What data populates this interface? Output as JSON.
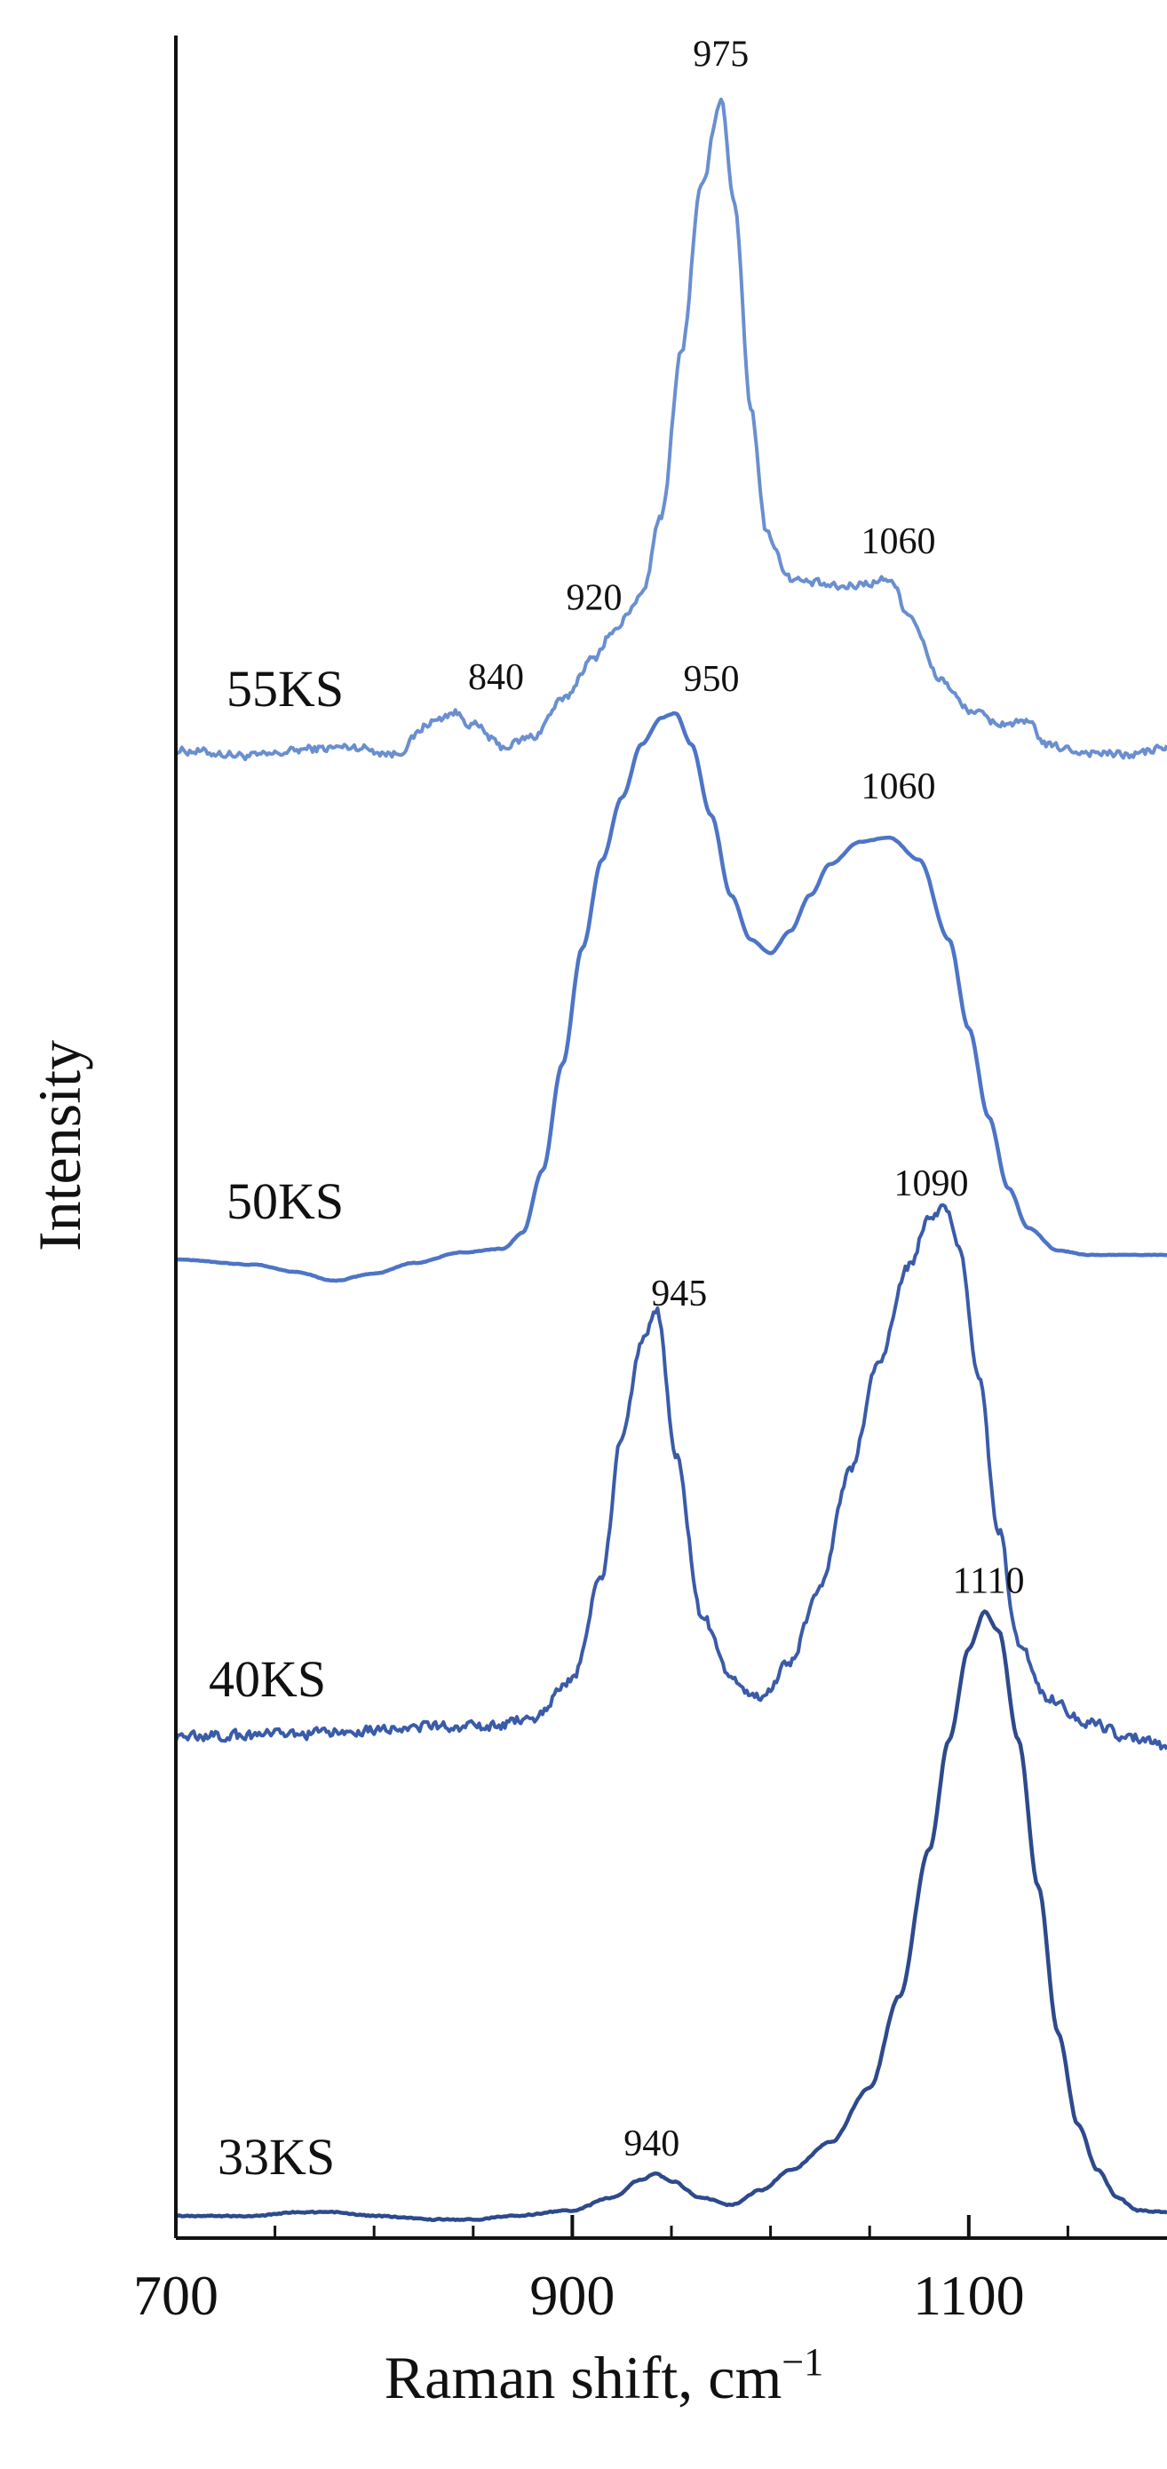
{
  "chart_data": {
    "type": "line",
    "xlabel": "Raman shift, cm",
    "xlabel_superscript": "−1",
    "ylabel": "Intensity",
    "xlim": [
      700,
      1200
    ],
    "x_ticks": [
      700,
      900,
      1100
    ],
    "x_minor_ticks": [
      750,
      800,
      850,
      950,
      1000,
      1050,
      1150
    ],
    "y_ticks": [],
    "grid": false,
    "legend": "none",
    "colors": {
      "55KS": "#6a8fd0",
      "50KS": "#4d74c6",
      "40KS": "#3a5ba8",
      "33KS": "#2e4a8c",
      "axis": "#111111"
    },
    "series": [
      {
        "name": "55KS",
        "noise": 0.6,
        "points": [
          [
            700,
            0
          ],
          [
            740,
            -0.6
          ],
          [
            770,
            0.2
          ],
          [
            790,
            0.4
          ],
          [
            810,
            -0.4
          ],
          [
            830,
            3.2
          ],
          [
            840,
            4.2
          ],
          [
            850,
            2.8
          ],
          [
            865,
            0.4
          ],
          [
            880,
            1.5
          ],
          [
            895,
            5.5
          ],
          [
            910,
            10
          ],
          [
            920,
            13
          ],
          [
            935,
            17
          ],
          [
            945,
            26
          ],
          [
            955,
            44
          ],
          [
            965,
            62
          ],
          [
            975,
            72
          ],
          [
            982,
            60
          ],
          [
            990,
            38
          ],
          [
            998,
            24
          ],
          [
            1010,
            19
          ],
          [
            1020,
            18.5
          ],
          [
            1035,
            18
          ],
          [
            1050,
            18.5
          ],
          [
            1060,
            19
          ],
          [
            1070,
            15
          ],
          [
            1085,
            8
          ],
          [
            1100,
            4.5
          ],
          [
            1115,
            3
          ],
          [
            1130,
            3
          ],
          [
            1140,
            0.5
          ],
          [
            1160,
            -0.2
          ],
          [
            1180,
            -0.5
          ],
          [
            1200,
            0.3
          ]
        ],
        "peak_labels": [
          {
            "text": "975",
            "x": 975
          },
          {
            "text": "1060",
            "x": 1060
          },
          {
            "text": "920",
            "x": 920
          },
          {
            "text": "840",
            "x": 840
          }
        ]
      },
      {
        "name": "50KS",
        "noise": 0.05,
        "points": [
          [
            700,
            0
          ],
          [
            740,
            -0.6
          ],
          [
            760,
            -1.4
          ],
          [
            780,
            -2.4
          ],
          [
            800,
            -1.6
          ],
          [
            820,
            -0.4
          ],
          [
            845,
            0.8
          ],
          [
            865,
            1.2
          ],
          [
            875,
            3
          ],
          [
            885,
            10
          ],
          [
            895,
            22
          ],
          [
            905,
            35
          ],
          [
            915,
            45
          ],
          [
            925,
            52
          ],
          [
            935,
            58
          ],
          [
            945,
            61
          ],
          [
            952,
            61.5
          ],
          [
            960,
            58
          ],
          [
            970,
            50
          ],
          [
            980,
            41
          ],
          [
            990,
            36
          ],
          [
            1000,
            34.5
          ],
          [
            1010,
            37
          ],
          [
            1020,
            41
          ],
          [
            1030,
            44.5
          ],
          [
            1045,
            47
          ],
          [
            1060,
            47.5
          ],
          [
            1075,
            45
          ],
          [
            1090,
            36
          ],
          [
            1100,
            26
          ],
          [
            1110,
            16
          ],
          [
            1120,
            8
          ],
          [
            1130,
            3.5
          ],
          [
            1145,
            1
          ],
          [
            1160,
            0.5
          ],
          [
            1200,
            0.5
          ]
        ],
        "peak_labels": [
          {
            "text": "950",
            "x": 950
          },
          {
            "text": "1060",
            "x": 1060
          }
        ]
      },
      {
        "name": "40KS",
        "noise": 0.7,
        "points": [
          [
            700,
            0
          ],
          [
            760,
            0.2
          ],
          [
            820,
            1
          ],
          [
            860,
            1
          ],
          [
            880,
            2
          ],
          [
            900,
            6
          ],
          [
            915,
            17
          ],
          [
            925,
            32
          ],
          [
            935,
            42
          ],
          [
            943,
            45
          ],
          [
            952,
            30
          ],
          [
            965,
            13
          ],
          [
            980,
            6
          ],
          [
            995,
            4
          ],
          [
            1010,
            8
          ],
          [
            1025,
            16
          ],
          [
            1040,
            28
          ],
          [
            1055,
            40
          ],
          [
            1070,
            50
          ],
          [
            1080,
            55
          ],
          [
            1088,
            56
          ],
          [
            1095,
            52
          ],
          [
            1105,
            38
          ],
          [
            1115,
            22
          ],
          [
            1125,
            10
          ],
          [
            1140,
            4
          ],
          [
            1160,
            1.5
          ],
          [
            1180,
            0
          ],
          [
            1200,
            -1
          ]
        ],
        "peak_labels": [
          {
            "text": "945",
            "x": 945
          },
          {
            "text": "1090",
            "x": 1090
          }
        ]
      },
      {
        "name": "33KS",
        "noise": 0.1,
        "points": [
          [
            700,
            0
          ],
          [
            740,
            0
          ],
          [
            760,
            0.4
          ],
          [
            780,
            0.4
          ],
          [
            800,
            0
          ],
          [
            830,
            -0.4
          ],
          [
            850,
            -0.4
          ],
          [
            870,
            0
          ],
          [
            900,
            0.6
          ],
          [
            920,
            2
          ],
          [
            935,
            4
          ],
          [
            942,
            4.6
          ],
          [
            950,
            3.8
          ],
          [
            965,
            2
          ],
          [
            980,
            1.2
          ],
          [
            995,
            2.8
          ],
          [
            1010,
            5
          ],
          [
            1030,
            8
          ],
          [
            1050,
            14
          ],
          [
            1065,
            24
          ],
          [
            1080,
            40
          ],
          [
            1090,
            52
          ],
          [
            1100,
            62
          ],
          [
            1108,
            66
          ],
          [
            1115,
            64
          ],
          [
            1125,
            52
          ],
          [
            1135,
            36
          ],
          [
            1145,
            20
          ],
          [
            1155,
            10
          ],
          [
            1165,
            5
          ],
          [
            1175,
            2
          ],
          [
            1185,
            0.6
          ],
          [
            1200,
            0.4
          ]
        ],
        "peak_labels": [
          {
            "text": "940",
            "x": 940
          },
          {
            "text": "1110",
            "x": 1110
          }
        ]
      }
    ]
  }
}
